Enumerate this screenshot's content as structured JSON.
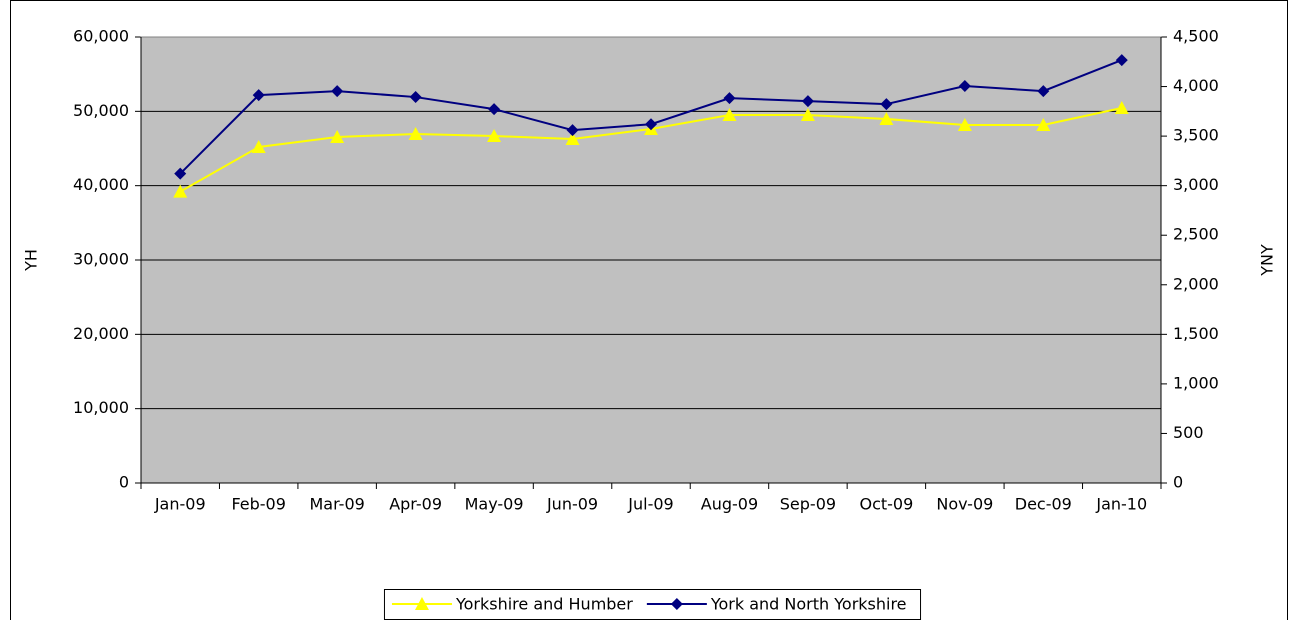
{
  "chart_data": {
    "type": "line",
    "categories": [
      "Jan-09",
      "Feb-09",
      "Mar-09",
      "Apr-09",
      "May-09",
      "Jun-09",
      "Jul-09",
      "Aug-09",
      "Sep-09",
      "Oct-09",
      "Nov-09",
      "Dec-09",
      "Jan-10"
    ],
    "series": [
      {
        "name": "Yorkshire and Humber",
        "color": "#ffff00",
        "marker": "triangle",
        "values": [
          39200,
          45200,
          46550,
          46950,
          46680,
          46280,
          47630,
          49510,
          49500,
          48970,
          48160,
          48160,
          50450
        ]
      },
      {
        "name": "York and North Yorkshire",
        "color": "#000080",
        "marker": "diamond",
        "axis": "y2",
        "values": [
          3121,
          3914,
          3954,
          3894,
          3772,
          3560,
          3620,
          3883,
          3853,
          3823,
          4005,
          3954,
          4267
        ]
      }
    ],
    "ylabel": "YH",
    "y2label": "YNY",
    "ylim": [
      0,
      60000
    ],
    "yticks": [
      0,
      {
        "value": 10000,
        "label": "10,000"
      },
      {
        "value": 20000,
        "label": "20,000"
      },
      {
        "value": 30000,
        "label": "30,000"
      },
      {
        "value": 40000,
        "label": "40,000"
      },
      {
        "value": 50000,
        "label": "50,000"
      },
      {
        "value": 60000,
        "label": "60,000"
      }
    ],
    "y2lim": [
      0,
      4500
    ],
    "y2ticks": [
      0,
      500,
      {
        "value": 1000,
        "label": "1,000"
      },
      {
        "value": 1500,
        "label": "1,500"
      },
      {
        "value": 2000,
        "label": "2,000"
      },
      {
        "value": 2500,
        "label": "2,500"
      },
      {
        "value": 3000,
        "label": "3,000"
      },
      {
        "value": 3500,
        "label": "3,500"
      },
      {
        "value": 4000,
        "label": "4,000"
      },
      {
        "value": 4500,
        "label": "4,500"
      }
    ],
    "grid": true,
    "legend": "bottom",
    "plot_background": "#c0c0c0"
  }
}
